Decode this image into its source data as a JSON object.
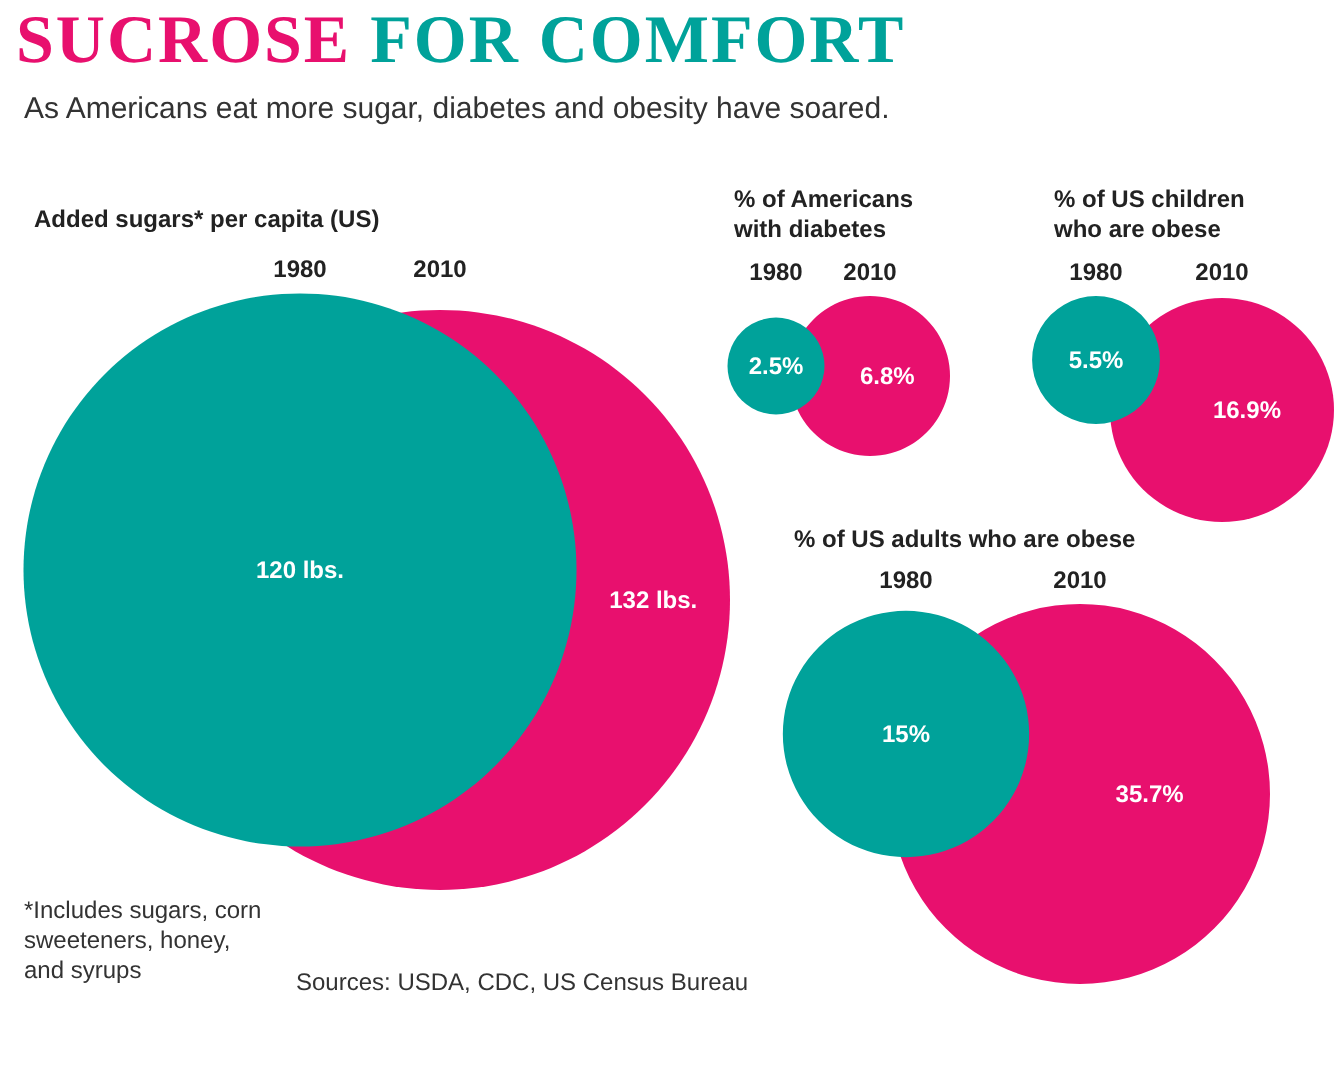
{
  "chart_data": [
    {
      "type": "other",
      "title": "SUCROSE FOR COMFORT",
      "subtitle": "As Americans eat more sugar, diabetes and obesity have soared.",
      "annotations": [
        "*Includes sugars, corn sweeteners, honey, and syrups",
        "Sources: USDA, CDC, US Census Bureau"
      ]
    },
    {
      "type": "other",
      "title": "Added sugars* per capita (US)",
      "categories": [
        "1980",
        "2010"
      ],
      "values": [
        120,
        132
      ],
      "value_labels": [
        "120 lbs.",
        "132 lbs."
      ],
      "colors": [
        "#00a29a",
        "#e8106e"
      ]
    },
    {
      "type": "other",
      "title": "% of Americans with diabetes",
      "categories": [
        "1980",
        "2010"
      ],
      "values": [
        2.5,
        6.8
      ],
      "value_labels": [
        "2.5%",
        "6.8%"
      ],
      "colors": [
        "#00a29a",
        "#e8106e"
      ]
    },
    {
      "type": "other",
      "title": "% of US children who are obese",
      "categories": [
        "1980",
        "2010"
      ],
      "values": [
        5.5,
        16.9
      ],
      "value_labels": [
        "5.5%",
        "16.9%"
      ],
      "colors": [
        "#00a29a",
        "#e8106e"
      ]
    },
    {
      "type": "other",
      "title": "% of US adults who are obese",
      "categories": [
        "1980",
        "2010"
      ],
      "values": [
        15,
        35.7
      ],
      "value_labels": [
        "15%",
        "35.7%"
      ],
      "colors": [
        "#00a29a",
        "#e8106e"
      ]
    }
  ]
}
